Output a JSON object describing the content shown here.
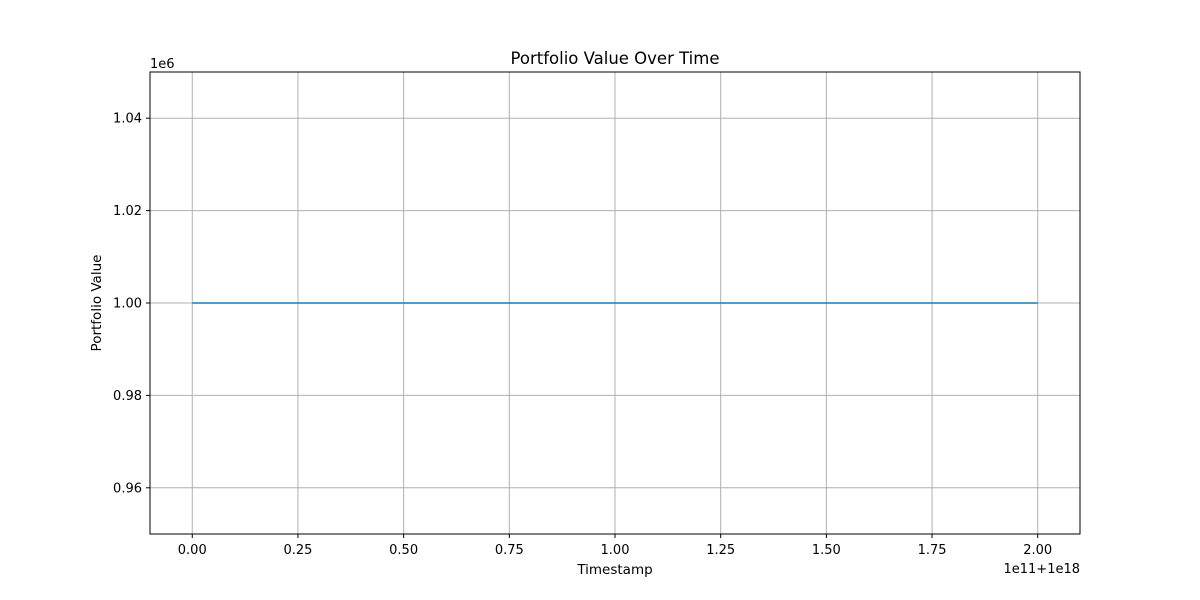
{
  "chart_data": {
    "type": "line",
    "title": "Portfolio Value Over Time",
    "xlabel": "Timestamp",
    "ylabel": "Portfolio Value",
    "x_offset_label": "1e11+1e18",
    "y_offset_label": "1e6",
    "xlim": [
      -0.1,
      2.1
    ],
    "ylim": [
      0.95,
      1.05
    ],
    "x_ticks": [
      0.0,
      0.25,
      0.5,
      0.75,
      1.0,
      1.25,
      1.5,
      1.75,
      2.0
    ],
    "x_tick_labels": [
      "0.00",
      "0.25",
      "0.50",
      "0.75",
      "1.00",
      "1.25",
      "1.50",
      "1.75",
      "2.00"
    ],
    "y_ticks": [
      0.96,
      0.98,
      1.0,
      1.02,
      1.04
    ],
    "y_tick_labels": [
      "0.96",
      "0.98",
      "1.00",
      "1.02",
      "1.04"
    ],
    "grid": true,
    "series": [
      {
        "color": "#1f77b4",
        "x": [
          0.0,
          2.0
        ],
        "y": [
          1.0,
          1.0
        ]
      }
    ]
  }
}
